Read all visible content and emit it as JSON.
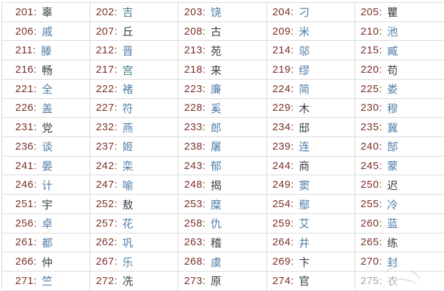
{
  "table": {
    "columns": 5,
    "separator": ":",
    "cells": [
      {
        "rank": "201",
        "name": "辜",
        "tone": "dark"
      },
      {
        "rank": "202",
        "name": "吉",
        "tone": "teal"
      },
      {
        "rank": "203",
        "name": "饶",
        "tone": "blue"
      },
      {
        "rank": "204",
        "name": "刁",
        "tone": "blue"
      },
      {
        "rank": "205",
        "name": "瞿",
        "tone": "dark"
      },
      {
        "rank": "206",
        "name": "戚",
        "tone": "blue"
      },
      {
        "rank": "207",
        "name": "丘",
        "tone": "dark"
      },
      {
        "rank": "208",
        "name": "古",
        "tone": "dark"
      },
      {
        "rank": "209",
        "name": "米",
        "tone": "blue"
      },
      {
        "rank": "210",
        "name": "池",
        "tone": "blue"
      },
      {
        "rank": "211",
        "name": "滕",
        "tone": "blue"
      },
      {
        "rank": "212",
        "name": "晋",
        "tone": "blue"
      },
      {
        "rank": "213",
        "name": "苑",
        "tone": "dark"
      },
      {
        "rank": "214",
        "name": "邬",
        "tone": "blue"
      },
      {
        "rank": "215",
        "name": "臧",
        "tone": "blue"
      },
      {
        "rank": "216",
        "name": "畅",
        "tone": "dark"
      },
      {
        "rank": "217",
        "name": "宫",
        "tone": "teal"
      },
      {
        "rank": "218",
        "name": "来",
        "tone": "dark"
      },
      {
        "rank": "219",
        "name": "缪",
        "tone": "blue"
      },
      {
        "rank": "220",
        "name": "苟",
        "tone": "dark"
      },
      {
        "rank": "221",
        "name": "全",
        "tone": "blue"
      },
      {
        "rank": "222",
        "name": "褚",
        "tone": "blue"
      },
      {
        "rank": "223",
        "name": "廉",
        "tone": "blue"
      },
      {
        "rank": "224",
        "name": "简",
        "tone": "blue"
      },
      {
        "rank": "225",
        "name": "娄",
        "tone": "blue"
      },
      {
        "rank": "226",
        "name": "盖",
        "tone": "blue"
      },
      {
        "rank": "227",
        "name": "符",
        "tone": "blue"
      },
      {
        "rank": "228",
        "name": "奚",
        "tone": "blue"
      },
      {
        "rank": "229",
        "name": "木",
        "tone": "dark"
      },
      {
        "rank": "230",
        "name": "穆",
        "tone": "blue"
      },
      {
        "rank": "231",
        "name": "党",
        "tone": "dark"
      },
      {
        "rank": "232",
        "name": "燕",
        "tone": "blue"
      },
      {
        "rank": "233",
        "name": "郎",
        "tone": "blue"
      },
      {
        "rank": "234",
        "name": "邸",
        "tone": "dark"
      },
      {
        "rank": "235",
        "name": "冀",
        "tone": "blue"
      },
      {
        "rank": "236",
        "name": "谈",
        "tone": "blue"
      },
      {
        "rank": "237",
        "name": "姬",
        "tone": "blue"
      },
      {
        "rank": "238",
        "name": "屠",
        "tone": "blue"
      },
      {
        "rank": "239",
        "name": "连",
        "tone": "blue"
      },
      {
        "rank": "240",
        "name": "郜",
        "tone": "blue"
      },
      {
        "rank": "241",
        "name": "晏",
        "tone": "blue"
      },
      {
        "rank": "242",
        "name": "栾",
        "tone": "blue"
      },
      {
        "rank": "243",
        "name": "郁",
        "tone": "blue"
      },
      {
        "rank": "244",
        "name": "商",
        "tone": "dark"
      },
      {
        "rank": "245",
        "name": "蒙",
        "tone": "blue"
      },
      {
        "rank": "246",
        "name": "计",
        "tone": "blue"
      },
      {
        "rank": "247",
        "name": "喻",
        "tone": "blue"
      },
      {
        "rank": "248",
        "name": "揭",
        "tone": "dark"
      },
      {
        "rank": "249",
        "name": "窦",
        "tone": "blue"
      },
      {
        "rank": "250",
        "name": "迟",
        "tone": "dark"
      },
      {
        "rank": "251",
        "name": "宇",
        "tone": "dark"
      },
      {
        "rank": "252",
        "name": "敖",
        "tone": "dark"
      },
      {
        "rank": "253",
        "name": "糜",
        "tone": "blue"
      },
      {
        "rank": "254",
        "name": "鄢",
        "tone": "blue"
      },
      {
        "rank": "255",
        "name": "冷",
        "tone": "blue"
      },
      {
        "rank": "256",
        "name": "卓",
        "tone": "blue"
      },
      {
        "rank": "257",
        "name": "花",
        "tone": "blue"
      },
      {
        "rank": "258",
        "name": "仇",
        "tone": "blue"
      },
      {
        "rank": "259",
        "name": "艾",
        "tone": "blue"
      },
      {
        "rank": "260",
        "name": "蓝",
        "tone": "blue"
      },
      {
        "rank": "261",
        "name": "都",
        "tone": "blue"
      },
      {
        "rank": "262",
        "name": "巩",
        "tone": "blue"
      },
      {
        "rank": "263",
        "name": "稽",
        "tone": "dark"
      },
      {
        "rank": "264",
        "name": "井",
        "tone": "blue"
      },
      {
        "rank": "265",
        "name": "练",
        "tone": "dark"
      },
      {
        "rank": "266",
        "name": "仲",
        "tone": "dark"
      },
      {
        "rank": "267",
        "name": "乐",
        "tone": "blue"
      },
      {
        "rank": "268",
        "name": "虞",
        "tone": "blue"
      },
      {
        "rank": "269",
        "name": "卞",
        "tone": "dark"
      },
      {
        "rank": "270",
        "name": "封",
        "tone": "blue"
      },
      {
        "rank": "271",
        "name": "竺",
        "tone": "blue"
      },
      {
        "rank": "272",
        "name": "冼",
        "tone": "dark"
      },
      {
        "rank": "273",
        "name": "原",
        "tone": "dark"
      },
      {
        "rank": "274",
        "name": "官",
        "tone": "dark"
      },
      {
        "rank": "275",
        "name": "衣",
        "tone": "faded"
      }
    ]
  },
  "colors": {
    "rank": "#7a2f28",
    "blue": "#4f7ea8",
    "teal": "#3f7e86",
    "dark": "#3a3d40",
    "faded": "#a2a7ab",
    "border": "#dadada",
    "background": "#ffffff"
  }
}
